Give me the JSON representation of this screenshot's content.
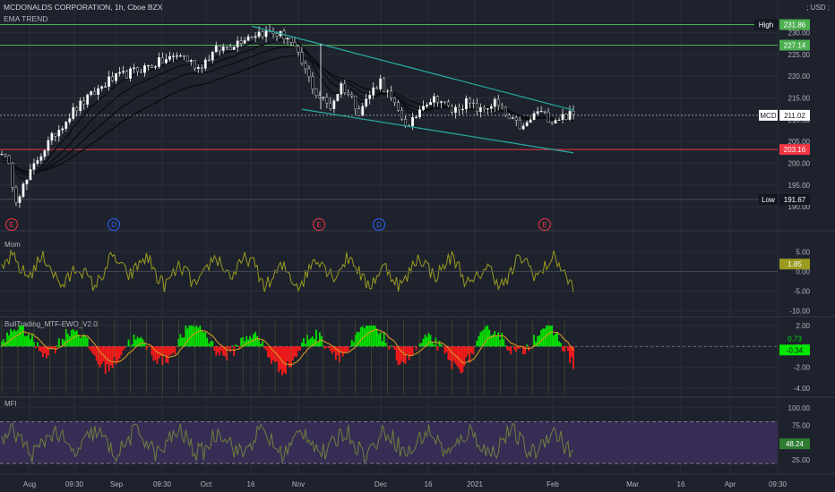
{
  "header": {
    "symbol_line": "MCDONALDS CORPORATION, 1h, Cboe BZX",
    "indicator_line": "EMA TREND",
    "currency": "; USD ;"
  },
  "panes": {
    "mom": "Mom",
    "ewo": "BullTrading_MTF-EWO_V2.0",
    "mfi": "MFI"
  },
  "colors": {
    "background": "#1e222d",
    "grid": "#2a2e39",
    "level_green": "#4caf50",
    "level_red": "#f23645",
    "trendline": "#26a69a",
    "mom": "#9a9a1e",
    "ewo_up": "#00e600",
    "ewo_down": "#ff1a1a",
    "mfi_band": "#3c2f5c"
  },
  "chart_data": [
    {
      "type": "line",
      "subtype": "candlestick",
      "pane": "price",
      "title": "MCDONALDS CORPORATION, 1h, Cboe BZX",
      "x_ticks": [
        "Aug",
        "09:30",
        "Sep",
        "09:30",
        "Oct",
        "16",
        "Nov",
        "Dec",
        "16",
        "2021",
        "Feb",
        "Mar",
        "16",
        "Apr",
        "09:30"
      ],
      "y_ticks": [
        190,
        195,
        200,
        205,
        210,
        215,
        220,
        225,
        230
      ],
      "ylim": [
        189,
        233
      ],
      "price_path": {
        "x_index": [
          0,
          2,
          4,
          7,
          10,
          15,
          20,
          30,
          40,
          50,
          55,
          60,
          64,
          68,
          72,
          76,
          80,
          84,
          88,
          92,
          95,
          98,
          100,
          104,
          106,
          110,
          114,
          118,
          122,
          126,
          130,
          134,
          138,
          142,
          146,
          150,
          154,
          158
        ],
        "close": [
          203,
          199,
          192,
          196,
          201,
          207,
          212,
          219,
          222,
          225,
          222,
          226,
          227,
          229,
          230,
          230,
          229,
          223,
          216,
          213,
          218,
          215,
          212,
          217,
          219,
          213,
          208,
          214,
          215,
          212,
          214,
          212,
          214,
          210,
          208,
          212,
          210,
          211
        ]
      },
      "ema_lines": 4,
      "levels": [
        {
          "label": "High",
          "value": 231.86,
          "color": "#4caf50"
        },
        {
          "value": 227.14,
          "color": "#4caf50"
        },
        {
          "label": "MCD",
          "value": 211.02,
          "color": "#ffffff"
        },
        {
          "value": 203.16,
          "color": "#f23645"
        },
        {
          "label": "Low",
          "value": 191.67,
          "color": "#2a2e39"
        }
      ],
      "trendlines": [
        {
          "from": [
            70,
            231.5
          ],
          "to": [
            160,
            212.2
          ]
        },
        {
          "from": [
            84,
            212.4
          ],
          "to": [
            160,
            202.4
          ]
        }
      ],
      "event_markers": [
        "E",
        "D",
        "E",
        "D",
        "E"
      ]
    },
    {
      "type": "line",
      "pane": "Mom",
      "y_ticks": [
        5.0,
        0.0,
        -5.0,
        -10.0
      ],
      "ylim": [
        -11,
        8
      ],
      "last_value": 1.85
    },
    {
      "type": "bar",
      "pane": "BullTrading_MTF-EWO_V2.0",
      "y_ticks": [
        2.0,
        0.0,
        -2.0,
        -4.0
      ],
      "ylim": [
        -4.5,
        2.5
      ],
      "last_values": [
        0.73,
        -0.34
      ]
    },
    {
      "type": "line",
      "pane": "MFI",
      "y_ticks": [
        100.0,
        75.0,
        50.0,
        25.0
      ],
      "ylim": [
        15,
        105
      ],
      "bands": [
        20,
        80
      ],
      "last_value": 48.24
    }
  ]
}
